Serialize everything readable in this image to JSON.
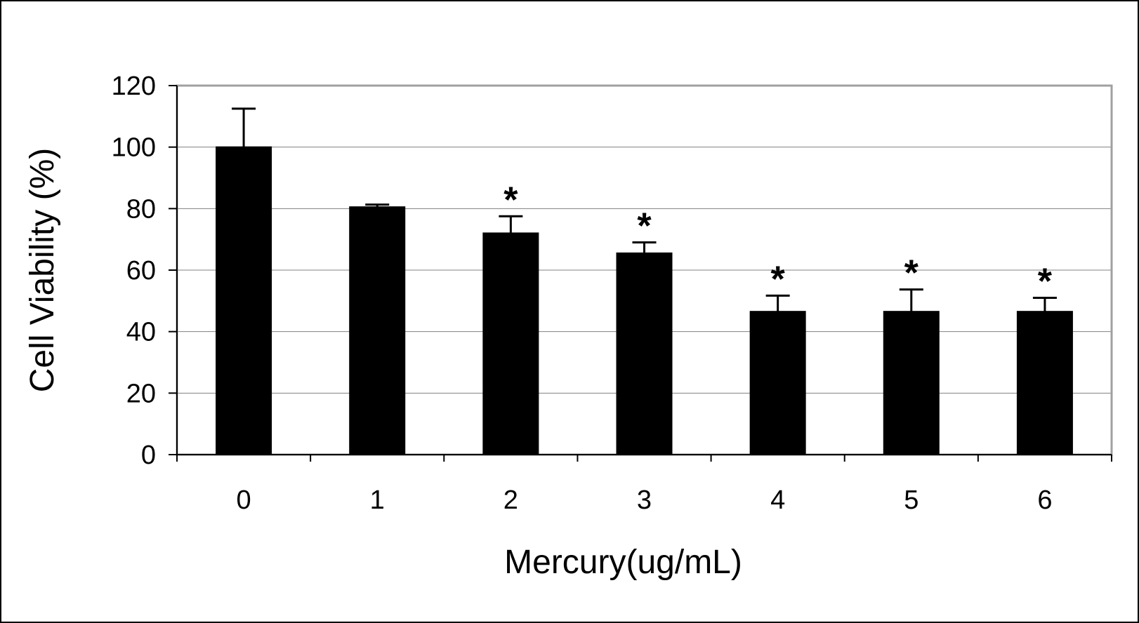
{
  "chart_data": {
    "type": "bar",
    "xlabel": "Mercury(ug/mL)",
    "ylabel": "Cell Viability (%)",
    "categories": [
      "0",
      "1",
      "2",
      "3",
      "4",
      "5",
      "6"
    ],
    "values": [
      100,
      80.5,
      72,
      65.5,
      46.5,
      46.5,
      46.5
    ],
    "error_upper": [
      12.5,
      0.8,
      5.5,
      3.5,
      5.2,
      7.2,
      4.5
    ],
    "significance_markers": [
      "",
      "",
      "*",
      "*",
      "*",
      "*",
      "*"
    ],
    "y_ticks": [
      "0",
      "20",
      "40",
      "60",
      "80",
      "100",
      "120"
    ],
    "ylim": [
      0,
      120
    ],
    "grid": true,
    "legend": "none",
    "colors": {
      "bars": "#000000",
      "gridlines": "#808080",
      "plot_frame": "#a0a0a0",
      "background": "#ffffff"
    }
  }
}
